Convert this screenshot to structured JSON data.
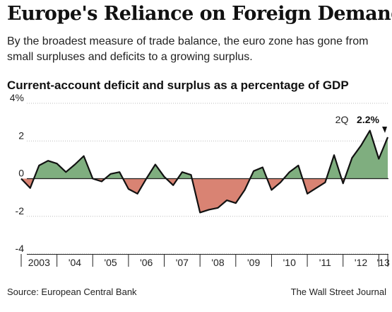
{
  "header": {
    "title": "Europe's Reliance on Foreign Demand",
    "subtitle": "By the broadest measure of trade balance, the euro zone has gone from small surpluses and deficits to a growing surplus.",
    "chart_title": "Current-account deficit and surplus as a percentage of GDP"
  },
  "footer": {
    "source": "Source: European Central Bank",
    "credit": "The Wall Street Journal"
  },
  "colors": {
    "positive_fill": "#7fae7f",
    "negative_fill": "#d98373",
    "line": "#111111",
    "grid": "#bbbbbb"
  },
  "chart_data": {
    "type": "area",
    "title": "Current-account deficit and surplus as a percentage of GDP",
    "xlabel": "",
    "ylabel": "",
    "ylim": [
      -4,
      4
    ],
    "y_ticks": [
      "4%",
      "2",
      "0",
      "-2",
      "-4"
    ],
    "y_tick_values": [
      4,
      2,
      0,
      -2,
      -4
    ],
    "x_ticks": [
      "2003",
      "'04",
      "'05",
      "'06",
      "'07",
      "'08",
      "'09",
      "'10",
      "'11",
      "'12",
      "'13"
    ],
    "grid": true,
    "annotation": {
      "period": "2Q",
      "value_label": "2.2%",
      "value": 2.2
    },
    "series": [
      {
        "x": [
          "2003Q1",
          "2003Q2",
          "2003Q3",
          "2003Q4",
          "2004Q1",
          "2004Q2",
          "2004Q3",
          "2004Q4",
          "2005Q1",
          "2005Q2",
          "2005Q3",
          "2005Q4",
          "2006Q1",
          "2006Q2",
          "2006Q3",
          "2006Q4",
          "2007Q1",
          "2007Q2",
          "2007Q3",
          "2007Q4",
          "2008Q1",
          "2008Q2",
          "2008Q3",
          "2008Q4",
          "2009Q1",
          "2009Q2",
          "2009Q3",
          "2009Q4",
          "2010Q1",
          "2010Q2",
          "2010Q3",
          "2010Q4",
          "2011Q1",
          "2011Q2",
          "2011Q3",
          "2011Q4",
          "2012Q1",
          "2012Q2",
          "2012Q3",
          "2012Q4",
          "2013Q1",
          "2013Q2"
        ],
        "values": [
          0.0,
          -0.5,
          0.7,
          0.95,
          0.8,
          0.35,
          0.75,
          1.2,
          0.0,
          -0.15,
          0.25,
          0.35,
          -0.55,
          -0.8,
          0.0,
          0.75,
          0.1,
          -0.35,
          0.35,
          0.2,
          -1.8,
          -1.65,
          -1.55,
          -1.15,
          -1.3,
          -0.6,
          0.4,
          0.6,
          -0.6,
          -0.2,
          0.35,
          0.7,
          -0.8,
          -0.5,
          -0.2,
          1.25,
          -0.25,
          1.1,
          1.75,
          2.55,
          1.05,
          2.2
        ]
      }
    ]
  }
}
